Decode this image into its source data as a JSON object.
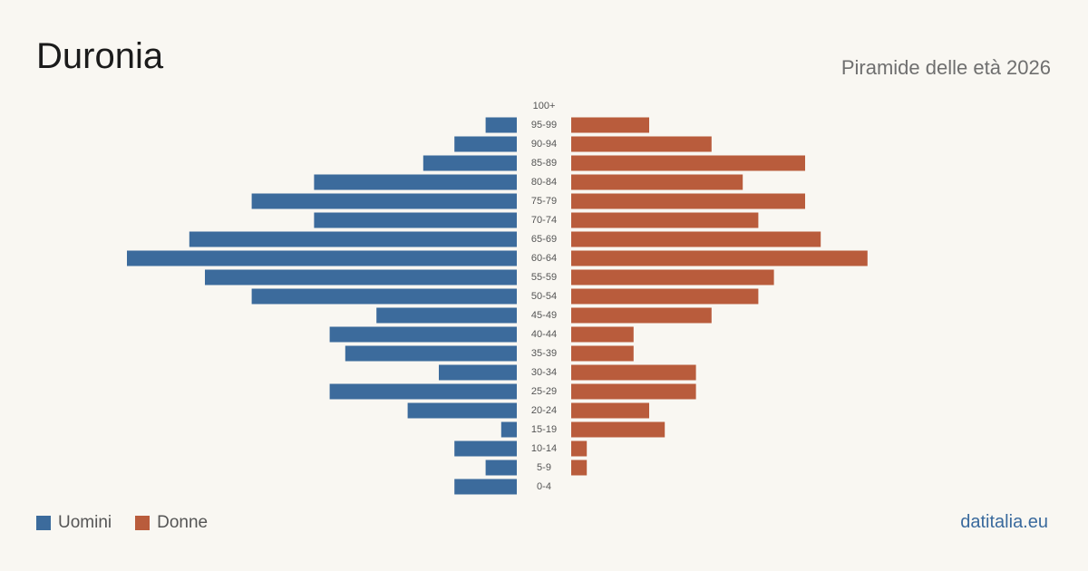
{
  "header": {
    "title": "Duronia",
    "subtitle": "Piramide delle età 2026"
  },
  "legend": {
    "men_label": "Uomini",
    "women_label": "Donne"
  },
  "footer": {
    "source": "datitalia.eu"
  },
  "colors": {
    "men": "#3c6b9c",
    "women": "#b95c3c",
    "background": "#f9f7f2"
  },
  "chart_data": {
    "type": "bar",
    "orientation": "horizontal-pyramid",
    "categories": [
      "100+",
      "95-99",
      "90-94",
      "85-89",
      "80-84",
      "75-79",
      "70-74",
      "65-69",
      "60-64",
      "55-59",
      "50-54",
      "45-49",
      "40-44",
      "35-39",
      "30-34",
      "25-29",
      "20-24",
      "15-19",
      "10-14",
      "5-9",
      "0-4"
    ],
    "series": [
      {
        "name": "Uomini",
        "values": [
          0,
          2,
          4,
          6,
          13,
          17,
          13,
          21,
          25,
          20,
          17,
          9,
          12,
          11,
          5,
          12,
          7,
          1,
          4,
          2,
          4
        ]
      },
      {
        "name": "Donne",
        "values": [
          0,
          5,
          9,
          15,
          11,
          15,
          12,
          16,
          19,
          13,
          12,
          9,
          4,
          4,
          8,
          8,
          5,
          6,
          1,
          1,
          0
        ]
      }
    ],
    "grid": false,
    "legend_position": "bottom-left"
  }
}
